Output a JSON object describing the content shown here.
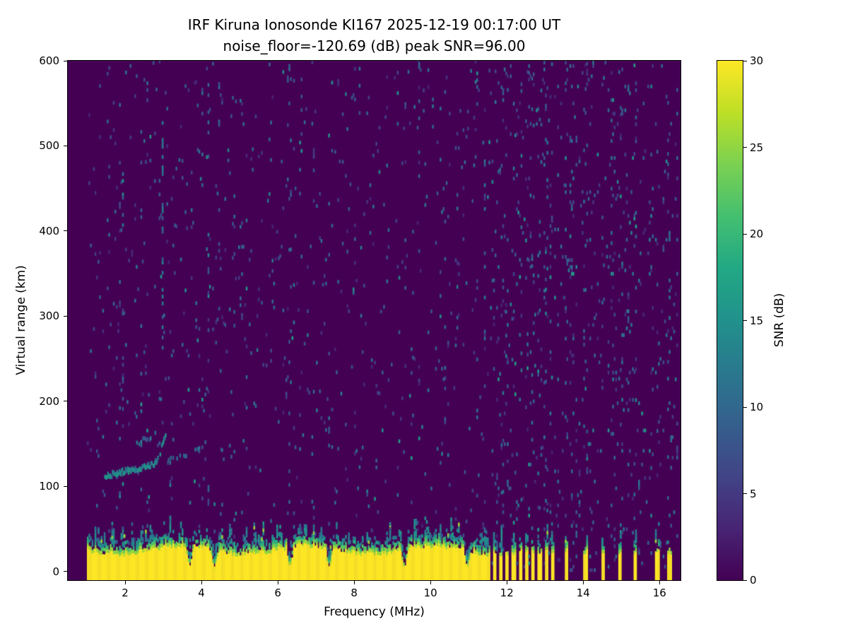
{
  "chart_data": {
    "type": "heatmap",
    "title": "IRF Kiruna Ionosonde KI167 2025-12-19 00:17:00  UT",
    "subtitle": "noise_floor=-120.69 (dB) peak SNR=96.00",
    "xlabel": "Frequency (MHz)",
    "ylabel": "Virtual range (km)",
    "station": "KI167",
    "timestamp_ut": "2025-12-19 00:17:00",
    "noise_floor_db": -120.69,
    "peak_snr_db": 96.0,
    "x_range": [
      0.5,
      16.55
    ],
    "y_range": [
      -10,
      600
    ],
    "x_ticks": [
      2,
      4,
      6,
      8,
      10,
      12,
      14,
      16
    ],
    "y_ticks": [
      0,
      100,
      200,
      300,
      400,
      500,
      600
    ],
    "colorbar": {
      "label": "SNR (dB)",
      "range": [
        0,
        30
      ],
      "ticks": [
        0,
        5,
        10,
        15,
        20,
        25,
        30
      ],
      "colormap": "viridis",
      "stops": [
        "#440154",
        "#482475",
        "#414487",
        "#355f8d",
        "#2a788e",
        "#21918c",
        "#22a884",
        "#44bf70",
        "#7ad151",
        "#bddf26",
        "#fde725"
      ]
    },
    "data_extent": {
      "f_start": 1.0,
      "f_end": 16.45
    },
    "features": {
      "ground_clutter": {
        "top_km_base": 26,
        "top_km_wobble": 5,
        "continuous_until_mhz": 11.55,
        "notch_freqs": [
          3.67,
          4.32,
          6.3,
          7.33,
          9.3,
          10.95
        ],
        "stripe_intervals": [
          [
            11.6,
            11.69
          ],
          [
            11.77,
            11.86
          ],
          [
            11.94,
            12.03
          ],
          [
            12.11,
            12.2
          ],
          [
            12.28,
            12.37
          ],
          [
            12.45,
            12.54
          ],
          [
            12.62,
            12.71
          ],
          [
            12.79,
            12.88
          ],
          [
            12.96,
            13.05
          ],
          [
            13.13,
            13.2
          ],
          [
            13.5,
            13.58
          ],
          [
            13.98,
            14.08
          ],
          [
            14.45,
            14.55
          ],
          [
            14.88,
            14.96
          ],
          [
            15.28,
            15.36
          ],
          [
            15.86,
            15.96
          ],
          [
            16.18,
            16.28
          ]
        ]
      },
      "echo_trace_segments": [
        {
          "f0": 1.45,
          "f1": 2.6,
          "km0": 110,
          "km1": 122,
          "shape": "linear",
          "density": 1.0,
          "snr_db": 14
        },
        {
          "f0": 2.6,
          "f1": 3.05,
          "km0": 122,
          "km1": 162,
          "shape": "cusp",
          "density": 0.9,
          "snr_db": 13
        },
        {
          "f0": 2.15,
          "f1": 2.78,
          "km0": 146,
          "km1": 158,
          "shape": "linear",
          "density": 0.35,
          "snr_db": 10
        },
        {
          "f0": 3.1,
          "f1": 3.95,
          "km0": 127,
          "km1": 142,
          "shape": "linear",
          "density": 0.3,
          "snr_db": 9
        }
      ],
      "vertical_streaks": [
        {
          "f": 2.96,
          "km0": 80,
          "km1": 575,
          "density": 0.18,
          "snr_db": 11
        },
        {
          "f": 6.3,
          "km0": 0,
          "km1": 600,
          "density": 0.07,
          "snr_db": 9
        },
        {
          "f": 7.33,
          "km0": 0,
          "km1": 600,
          "density": 0.06,
          "snr_db": 9
        },
        {
          "f": 10.35,
          "km0": 0,
          "km1": 600,
          "density": 0.07,
          "snr_db": 9
        }
      ],
      "rfi_band": {
        "f_start": 11.55,
        "f_end": 16.5,
        "column_line_prob": 0.55,
        "gain_min": 1.5,
        "gain_max": 5.0
      },
      "noise": {
        "base_speckle_prob": 0.02,
        "snr_db_min": 3,
        "snr_db_max": 12,
        "bright_prob": 0.08,
        "bright_db_max": 17
      }
    },
    "render": {
      "cell_w_mhz": 0.04,
      "cell_h_km": 4,
      "seed": 167
    }
  }
}
